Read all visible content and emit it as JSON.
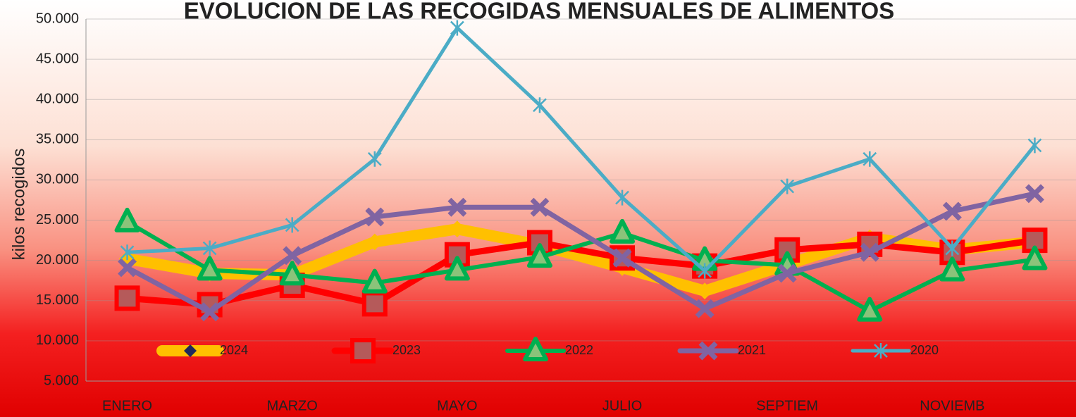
{
  "chart_data": {
    "type": "line",
    "title": "EVOLUCION DE LAS RECOGIDAS MENSUALES DE ALIMENTOS",
    "y_label": "kilos recogidos",
    "categories": [
      "ENERO",
      null,
      "MARZO",
      null,
      "MAYO",
      null,
      "JULIO",
      null,
      "SEPTIEM",
      null,
      "NOVIEMB",
      null
    ],
    "ylim": [
      5000,
      50000
    ],
    "yticks": [
      {
        "value": 5000,
        "label": "5.000"
      },
      {
        "value": 10000,
        "label": "10.000"
      },
      {
        "value": 15000,
        "label": "15.000"
      },
      {
        "value": 20000,
        "label": "20.000"
      },
      {
        "value": 25000,
        "label": "25.000"
      },
      {
        "value": 30000,
        "label": "30.000"
      },
      {
        "value": 35000,
        "label": "35.000"
      },
      {
        "value": 40000,
        "label": "40.000"
      },
      {
        "value": 45000,
        "label": "45.000"
      },
      {
        "value": 50000,
        "label": "50.000"
      }
    ],
    "grid": true,
    "legend": "bottom",
    "series": [
      {
        "name": "2024",
        "color": "#ffc000",
        "marker": "diamond",
        "values": [
          20200,
          18400,
          18200,
          22300,
          23900,
          21900,
          19100,
          16200,
          19500,
          22800,
          21300,
          22300
        ]
      },
      {
        "name": "2023",
        "color": "#ff0000",
        "marker": "square",
        "values": [
          15300,
          14500,
          16900,
          14600,
          20700,
          22200,
          20300,
          19300,
          21300,
          22000,
          21000,
          22500
        ]
      },
      {
        "name": "2022",
        "color": "#00b050",
        "marker": "triangle",
        "values": [
          24800,
          18800,
          18200,
          17200,
          18800,
          20400,
          23400,
          20000,
          19400,
          13700,
          18700,
          20100
        ]
      },
      {
        "name": "2021",
        "color": "#8064a2",
        "marker": "x",
        "values": [
          19100,
          13600,
          20600,
          25400,
          26600,
          26600,
          20300,
          14000,
          18400,
          21000,
          26100,
          28300
        ]
      },
      {
        "name": "2020",
        "color": "#4bacc6",
        "marker": "star",
        "values": [
          21000,
          21500,
          24400,
          32600,
          48900,
          39300,
          27800,
          18700,
          29200,
          32600,
          21500,
          34300
        ]
      }
    ]
  }
}
